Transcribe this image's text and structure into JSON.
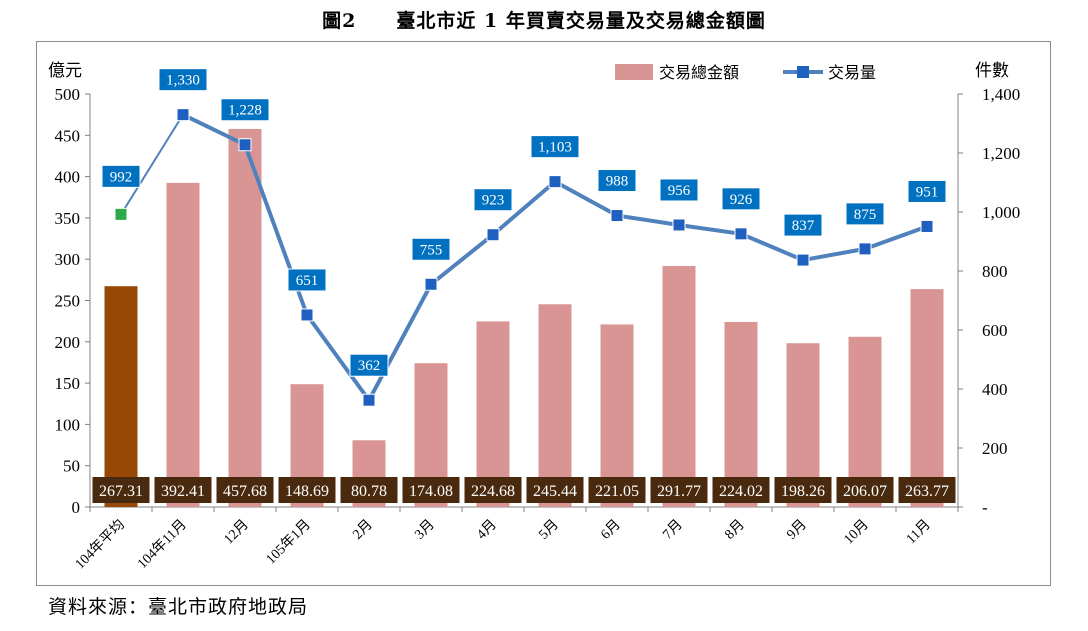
{
  "title": "圖2　　臺北市近 1 年買賣交易量及交易總金額圖",
  "source": "資料來源：臺北市政府地政局",
  "colors": {
    "bar": "#d99594",
    "bar_highlight": "#974806",
    "line": "#4f81bd",
    "marker": "#1f5fbf",
    "marker_special": "#2da84a",
    "value_box_dark": "#4a2a0e",
    "value_box_blue": "#0070c0"
  },
  "chart_data": {
    "type": "bar+line",
    "categories": [
      "104年平均",
      "104年11月",
      "12月",
      "105年1月",
      "2月",
      "3月",
      "4月",
      "5月",
      "6月",
      "7月",
      "8月",
      "9月",
      "10月",
      "11月"
    ],
    "series": [
      {
        "name": "交易總金額",
        "type": "bar",
        "axis": "left",
        "values": [
          267.31,
          392.41,
          457.68,
          148.69,
          80.78,
          174.08,
          224.68,
          245.44,
          221.05,
          291.77,
          224.02,
          198.26,
          206.07,
          263.77
        ],
        "labels": [
          "267.31",
          "392.41",
          "457.68",
          "148.69",
          "80.78",
          "174.08",
          "224.68",
          "245.44",
          "221.05",
          "291.77",
          "224.02",
          "198.26",
          "206.07",
          "263.77"
        ]
      },
      {
        "name": "交易量",
        "type": "line",
        "axis": "right",
        "values": [
          992,
          1330,
          1228,
          651,
          362,
          755,
          923,
          1103,
          988,
          956,
          926,
          837,
          875,
          951
        ],
        "labels": [
          "992",
          "1,330",
          "1,228",
          "651",
          "362",
          "755",
          "923",
          "1,103",
          "988",
          "956",
          "926",
          "837",
          "875",
          "951"
        ]
      }
    ],
    "y_left": {
      "label": "億元",
      "range": [
        0,
        500
      ],
      "ticks": [
        "0",
        "50",
        "100",
        "150",
        "200",
        "250",
        "300",
        "350",
        "400",
        "450",
        "500"
      ]
    },
    "y_right": {
      "label": "件數",
      "range": [
        0,
        1400
      ],
      "ticks": [
        "-",
        "200",
        "400",
        "600",
        "800",
        "1,000",
        "1,200",
        "1,400"
      ]
    },
    "legend": {
      "position": "top-right",
      "items": [
        "交易總金額",
        "交易量"
      ]
    },
    "grid": false
  }
}
